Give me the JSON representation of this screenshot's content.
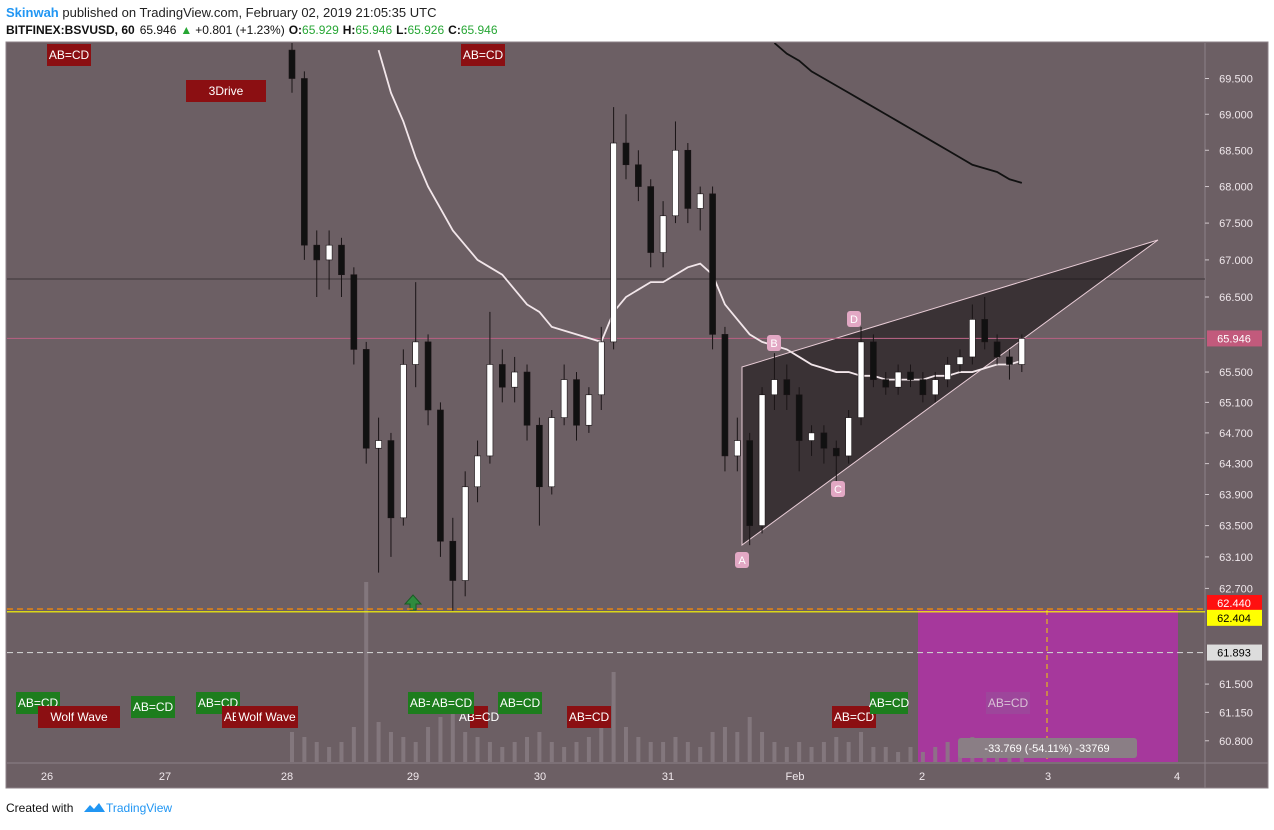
{
  "header": {
    "author": "Skinwah",
    "published": " published on TradingView.com, February 02, 2019 21:05:35 UTC",
    "symbol": "BITFINEX:BSVUSD, 60",
    "last": "65.946",
    "change_arrow": "▲",
    "change": "+0.801 (+1.23%)",
    "open_label": "O:",
    "open": "65.929",
    "high_label": "H:",
    "high": "65.946",
    "low_label": "L:",
    "low": "65.926",
    "close_label": "C:",
    "close": "65.946"
  },
  "footer": {
    "created": "Created with",
    "brand": "TradingView"
  },
  "chart_data": {
    "type": "candlestick",
    "log_scale": true,
    "ylim": [
      60.54,
      70.0
    ],
    "yticks": [
      {
        "value": 69.5,
        "label": "69.500"
      },
      {
        "value": 69.0,
        "label": "69.000"
      },
      {
        "value": 68.5,
        "label": "68.500"
      },
      {
        "value": 68.0,
        "label": "68.000"
      },
      {
        "value": 67.5,
        "label": "67.500"
      },
      {
        "value": 67.0,
        "label": "67.000"
      },
      {
        "value": 66.5,
        "label": "66.500"
      },
      {
        "value": 65.5,
        "label": "65.500"
      },
      {
        "value": 65.1,
        "label": "65.100"
      },
      {
        "value": 64.7,
        "label": "64.700"
      },
      {
        "value": 64.3,
        "label": "64.300"
      },
      {
        "value": 63.9,
        "label": "63.900"
      },
      {
        "value": 63.5,
        "label": "63.500"
      },
      {
        "value": 63.1,
        "label": "63.100"
      },
      {
        "value": 62.7,
        "label": "62.700"
      },
      {
        "value": 61.5,
        "label": "61.500"
      },
      {
        "value": 61.15,
        "label": "61.150"
      },
      {
        "value": 60.8,
        "label": "60.800"
      }
    ],
    "x_labels": [
      "26",
      "27",
      "28",
      "29",
      "30",
      "31",
      "Feb",
      "2",
      "3",
      "4"
    ],
    "up_color": "#ffffff",
    "down_color": "#111111",
    "candles": [
      {
        "o": 69.9,
        "h": 70.0,
        "l": 69.3,
        "c": 69.5
      },
      {
        "o": 69.5,
        "h": 69.6,
        "l": 67.0,
        "c": 67.2
      },
      {
        "o": 67.2,
        "h": 67.4,
        "l": 66.5,
        "c": 67.0
      },
      {
        "o": 67.0,
        "h": 67.4,
        "l": 66.6,
        "c": 67.2
      },
      {
        "o": 67.2,
        "h": 67.3,
        "l": 66.5,
        "c": 66.8
      },
      {
        "o": 66.8,
        "h": 66.9,
        "l": 65.6,
        "c": 65.8
      },
      {
        "o": 65.8,
        "h": 65.9,
        "l": 64.3,
        "c": 64.5
      },
      {
        "o": 64.5,
        "h": 64.9,
        "l": 62.9,
        "c": 64.6
      },
      {
        "o": 64.6,
        "h": 64.7,
        "l": 63.1,
        "c": 63.6
      },
      {
        "o": 63.6,
        "h": 65.8,
        "l": 63.5,
        "c": 65.6
      },
      {
        "o": 65.6,
        "h": 66.7,
        "l": 65.3,
        "c": 65.9
      },
      {
        "o": 65.9,
        "h": 66.0,
        "l": 64.8,
        "c": 65.0
      },
      {
        "o": 65.0,
        "h": 65.1,
        "l": 63.1,
        "c": 63.3
      },
      {
        "o": 63.3,
        "h": 63.6,
        "l": 62.42,
        "c": 62.8
      },
      {
        "o": 62.8,
        "h": 64.2,
        "l": 62.6,
        "c": 64.0
      },
      {
        "o": 64.0,
        "h": 64.6,
        "l": 63.8,
        "c": 64.4
      },
      {
        "o": 64.4,
        "h": 66.3,
        "l": 64.3,
        "c": 65.6
      },
      {
        "o": 65.6,
        "h": 65.8,
        "l": 65.1,
        "c": 65.3
      },
      {
        "o": 65.3,
        "h": 65.7,
        "l": 65.1,
        "c": 65.5
      },
      {
        "o": 65.5,
        "h": 65.6,
        "l": 64.6,
        "c": 64.8
      },
      {
        "o": 64.8,
        "h": 64.9,
        "l": 63.5,
        "c": 64.0
      },
      {
        "o": 64.0,
        "h": 65.0,
        "l": 63.9,
        "c": 64.9
      },
      {
        "o": 64.9,
        "h": 65.6,
        "l": 64.8,
        "c": 65.4
      },
      {
        "o": 65.4,
        "h": 65.5,
        "l": 64.6,
        "c": 64.8
      },
      {
        "o": 64.8,
        "h": 65.3,
        "l": 64.7,
        "c": 65.2
      },
      {
        "o": 65.2,
        "h": 66.1,
        "l": 65.0,
        "c": 65.9
      },
      {
        "o": 65.9,
        "h": 69.1,
        "l": 65.8,
        "c": 68.6
      },
      {
        "o": 68.6,
        "h": 69.0,
        "l": 68.1,
        "c": 68.3
      },
      {
        "o": 68.3,
        "h": 68.5,
        "l": 67.8,
        "c": 68.0
      },
      {
        "o": 68.0,
        "h": 68.1,
        "l": 66.9,
        "c": 67.1
      },
      {
        "o": 67.1,
        "h": 67.8,
        "l": 66.9,
        "c": 67.6
      },
      {
        "o": 67.6,
        "h": 68.9,
        "l": 67.5,
        "c": 68.5
      },
      {
        "o": 68.5,
        "h": 68.6,
        "l": 67.5,
        "c": 67.7
      },
      {
        "o": 67.7,
        "h": 68.0,
        "l": 67.4,
        "c": 67.9
      },
      {
        "o": 67.9,
        "h": 68.0,
        "l": 65.8,
        "c": 66.0
      },
      {
        "o": 66.0,
        "h": 66.1,
        "l": 64.2,
        "c": 64.4
      },
      {
        "o": 64.4,
        "h": 64.9,
        "l": 64.2,
        "c": 64.6
      },
      {
        "o": 64.6,
        "h": 64.7,
        "l": 63.25,
        "c": 63.5
      },
      {
        "o": 63.5,
        "h": 65.3,
        "l": 63.4,
        "c": 65.2
      },
      {
        "o": 65.2,
        "h": 65.75,
        "l": 65.0,
        "c": 65.4
      },
      {
        "o": 65.4,
        "h": 65.6,
        "l": 65.0,
        "c": 65.2
      },
      {
        "o": 65.2,
        "h": 65.3,
        "l": 64.2,
        "c": 64.6
      },
      {
        "o": 64.6,
        "h": 64.8,
        "l": 64.4,
        "c": 64.7
      },
      {
        "o": 64.7,
        "h": 64.8,
        "l": 64.3,
        "c": 64.5
      },
      {
        "o": 64.5,
        "h": 64.6,
        "l": 63.9,
        "c": 64.4
      },
      {
        "o": 64.4,
        "h": 65.0,
        "l": 64.3,
        "c": 64.9
      },
      {
        "o": 64.9,
        "h": 66.1,
        "l": 64.8,
        "c": 65.9
      },
      {
        "o": 65.9,
        "h": 66.0,
        "l": 65.3,
        "c": 65.4
      },
      {
        "o": 65.4,
        "h": 65.5,
        "l": 65.2,
        "c": 65.3
      },
      {
        "o": 65.3,
        "h": 65.6,
        "l": 65.2,
        "c": 65.5
      },
      {
        "o": 65.5,
        "h": 65.6,
        "l": 65.3,
        "c": 65.4
      },
      {
        "o": 65.4,
        "h": 65.5,
        "l": 65.1,
        "c": 65.2
      },
      {
        "o": 65.2,
        "h": 65.5,
        "l": 65.1,
        "c": 65.4
      },
      {
        "o": 65.4,
        "h": 65.7,
        "l": 65.3,
        "c": 65.6
      },
      {
        "o": 65.6,
        "h": 65.8,
        "l": 65.5,
        "c": 65.7
      },
      {
        "o": 65.7,
        "h": 66.4,
        "l": 65.6,
        "c": 66.2
      },
      {
        "o": 66.2,
        "h": 66.5,
        "l": 65.8,
        "c": 65.9
      },
      {
        "o": 65.9,
        "h": 66.0,
        "l": 65.6,
        "c": 65.7
      },
      {
        "o": 65.7,
        "h": 65.8,
        "l": 65.4,
        "c": 65.6
      },
      {
        "o": 65.6,
        "h": 66.0,
        "l": 65.5,
        "c": 65.946
      }
    ],
    "volume": [
      30,
      25,
      20,
      15,
      20,
      35,
      180,
      40,
      30,
      25,
      20,
      35,
      45,
      50,
      30,
      25,
      20,
      15,
      20,
      25,
      30,
      20,
      15,
      20,
      25,
      40,
      90,
      35,
      25,
      20,
      20,
      25,
      20,
      15,
      30,
      35,
      30,
      45,
      30,
      20,
      15,
      20,
      15,
      20,
      25,
      20,
      30,
      15,
      15,
      10,
      15,
      10,
      15,
      20,
      15,
      25,
      20,
      15,
      15,
      20
    ],
    "volume_color": "#8a7d83",
    "series": [
      {
        "color": "#f2e6ea",
        "values": [
          null,
          null,
          null,
          null,
          null,
          null,
          null,
          69.9,
          69.3,
          68.9,
          68.4,
          68.0,
          67.7,
          67.4,
          67.2,
          67.0,
          66.9,
          66.8,
          66.6,
          66.4,
          66.3,
          66.1,
          66.05,
          66.0,
          65.95,
          65.9,
          66.3,
          66.5,
          66.6,
          66.7,
          66.7,
          66.8,
          66.9,
          66.95,
          66.8,
          66.4,
          66.2,
          66.0,
          65.9,
          65.85,
          65.8,
          65.7,
          65.6,
          65.55,
          65.5,
          65.5,
          65.45,
          65.45,
          65.4,
          65.4,
          65.4,
          65.4,
          65.45,
          65.45,
          65.5,
          65.5,
          65.55,
          65.6,
          65.6,
          65.65
        ]
      },
      {
        "color": "#111111",
        "values": [
          null,
          null,
          null,
          null,
          null,
          null,
          null,
          null,
          null,
          null,
          null,
          null,
          null,
          null,
          null,
          null,
          null,
          null,
          null,
          null,
          null,
          null,
          null,
          null,
          null,
          null,
          null,
          null,
          null,
          null,
          null,
          null,
          null,
          null,
          null,
          null,
          null,
          null,
          null,
          70.0,
          69.85,
          69.75,
          69.6,
          69.5,
          69.4,
          69.3,
          69.2,
          69.1,
          69.0,
          68.9,
          68.8,
          68.7,
          68.6,
          68.5,
          68.4,
          68.3,
          68.25,
          68.2,
          68.1,
          68.05
        ]
      }
    ],
    "levels": [
      {
        "value": 65.946,
        "label": "65.946",
        "color": "#c25a7c",
        "text_color": "#ffffff",
        "line": "#b0607f",
        "dash": false
      },
      {
        "value": 62.44,
        "label": "62.440",
        "color": "#ff1010",
        "text_color": "#ffffff",
        "line": "#ff8a00",
        "dash": true
      },
      {
        "value": 62.404,
        "label": "62.404",
        "color": "#ffff00",
        "text_color": "#000000",
        "line": "#ffff00",
        "dash": false
      },
      {
        "value": 61.893,
        "label": "61.893",
        "color": "#dddddd",
        "text_color": "#000000",
        "line": "#cccccc",
        "dash": true
      }
    ],
    "pattern_points": [
      "A",
      "B",
      "C",
      "D"
    ],
    "markers_top": [
      {
        "text": "AB=CD",
        "color": "#8b0f12"
      },
      {
        "text": "3Drive",
        "color": "#8b0f12"
      },
      {
        "text": "AB=CD",
        "color": "#8b0f12"
      }
    ],
    "markers_bottom": [
      {
        "text": "AB=CD",
        "color": "#1d7d1d"
      },
      {
        "text": "Wolf Wave",
        "color": "#8b0f12"
      },
      {
        "text": "AB=CD",
        "color": "#1d7d1d"
      },
      {
        "text": "AB=CD",
        "color": "#1d7d1d"
      },
      {
        "text": "AB=CD",
        "color": "#8b0f12"
      },
      {
        "text": "Wolf Wave",
        "color": "#8b0f12"
      },
      {
        "text": "AB=CD",
        "color": "#8b0f12"
      },
      {
        "text": "AB=CD",
        "color": "#1d7d1d"
      },
      {
        "text": "AB=CD",
        "color": "#1d7d1d"
      },
      {
        "text": "AB=CD",
        "color": "#1d7d1d"
      },
      {
        "text": "AB=CD",
        "color": "#8b0f12"
      },
      {
        "text": "AB=CD",
        "color": "#8b0f12"
      },
      {
        "text": "AB=CD",
        "color": "#1d7d1d"
      },
      {
        "text": "AB=CD",
        "color": "#9b4a9b"
      }
    ],
    "measure": "-33.769 (-54.11%) -33769"
  }
}
